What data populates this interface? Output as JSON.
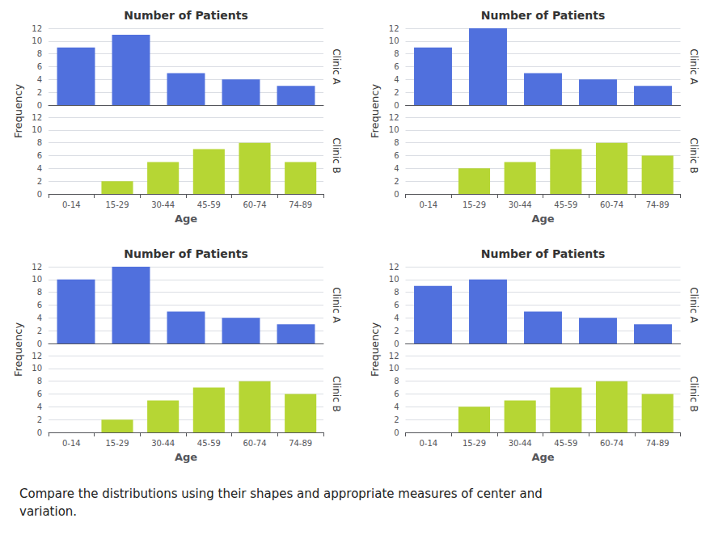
{
  "chart_data": [
    {
      "type": "bar",
      "title": "Number of Patients",
      "categories": [
        null,
        null,
        null,
        null,
        null
      ],
      "series": [
        {
          "name": "Clinic A",
          "values": [
            9,
            11,
            5,
            4,
            3
          ]
        }
      ],
      "ylim": [
        0,
        12
      ],
      "yticks": [
        0,
        2,
        4,
        6,
        8,
        10,
        12
      ],
      "grid": true,
      "tick_labels": "y"
    },
    {
      "type": "bar",
      "xlabel": "Age",
      "ylabel": "Frequency",
      "categories": [
        "0-14",
        "15-29",
        "30-44",
        "45-59",
        "60-74",
        "74-89"
      ],
      "series": [
        {
          "name": "Clinic B",
          "values": [
            0,
            2,
            5,
            7,
            8,
            5
          ]
        }
      ],
      "ylim": [
        0,
        12
      ],
      "yticks": [
        0,
        2,
        4,
        6,
        8,
        10,
        12
      ],
      "grid": true
    },
    {
      "type": "bar",
      "title": "Number of Patients",
      "categories": [
        null,
        null,
        null,
        null,
        null
      ],
      "series": [
        {
          "name": "Clinic A",
          "values": [
            9,
            12,
            5,
            4,
            3
          ]
        }
      ],
      "ylim": [
        0,
        12
      ],
      "yticks": [
        0,
        2,
        4,
        6,
        8,
        10,
        12
      ],
      "grid": true,
      "tick_labels": "y"
    },
    {
      "type": "bar",
      "xlabel": "Age",
      "ylabel": "Frequency",
      "categories": [
        "0-14",
        "15-29",
        "30-44",
        "45-59",
        "60-74",
        "74-89"
      ],
      "series": [
        {
          "name": "Clinic B",
          "values": [
            0,
            4,
            5,
            7,
            8,
            6
          ]
        }
      ],
      "ylim": [
        0,
        12
      ],
      "yticks": [
        0,
        2,
        4,
        6,
        8,
        10,
        12
      ],
      "grid": true
    },
    {
      "type": "bar",
      "title": "Number of Patients",
      "categories": [
        null,
        null,
        null,
        null,
        null
      ],
      "series": [
        {
          "name": "Clinic A",
          "values": [
            10,
            12,
            5,
            4,
            3
          ]
        }
      ],
      "ylim": [
        0,
        12
      ],
      "yticks": [
        0,
        2,
        4,
        6,
        8,
        10,
        12
      ],
      "grid": true,
      "tick_labels": "y"
    },
    {
      "type": "bar",
      "xlabel": "Age",
      "ylabel": "Frequency",
      "categories": [
        "0-14",
        "15-29",
        "30-44",
        "45-59",
        "60-74",
        "74-89"
      ],
      "series": [
        {
          "name": "Clinic B",
          "values": [
            0,
            2,
            5,
            7,
            8,
            6
          ]
        }
      ],
      "ylim": [
        0,
        12
      ],
      "yticks": [
        0,
        2,
        4,
        6,
        8,
        10,
        12
      ],
      "grid": true
    },
    {
      "type": "bar",
      "title": "Number of Patients",
      "categories": [
        null,
        null,
        null,
        null,
        null
      ],
      "series": [
        {
          "name": "Clinic A",
          "values": [
            9,
            10,
            5,
            4,
            3
          ]
        }
      ],
      "ylim": [
        0,
        12
      ],
      "yticks": [
        0,
        2,
        4,
        6,
        8,
        10,
        12
      ],
      "grid": true,
      "tick_labels": "y"
    },
    {
      "type": "bar",
      "xlabel": "Age",
      "ylabel": "Frequency",
      "categories": [
        "0-14",
        "15-29",
        "30-44",
        "45-59",
        "60-74",
        "74-89"
      ],
      "series": [
        {
          "name": "Clinic B",
          "values": [
            0,
            4,
            5,
            7,
            8,
            6
          ]
        }
      ],
      "ylim": [
        0,
        12
      ],
      "yticks": [
        0,
        2,
        4,
        6,
        8,
        10,
        12
      ],
      "grid": true,
      "annotations": [
        "Compare the distributions using their shapes and appropriate measures of center and\nvariation."
      ]
    }
  ]
}
